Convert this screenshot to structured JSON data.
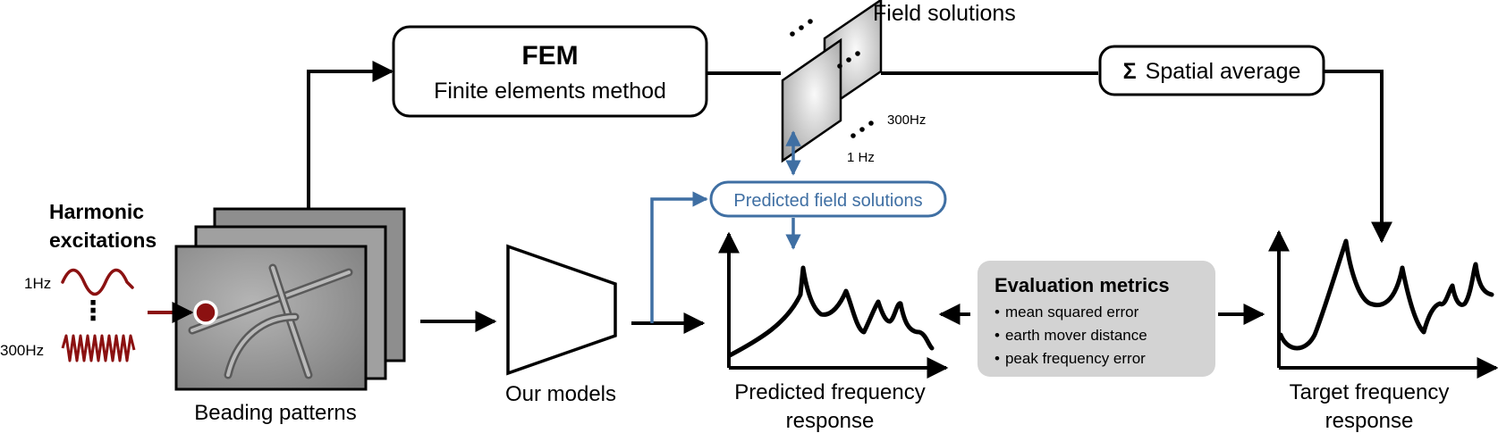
{
  "inputs": {
    "title_line1": "Harmonic",
    "title_line2": "excitations",
    "low_freq": "1Hz",
    "high_freq": "300Hz",
    "dots": "⋮",
    "wave_color": "#8b1111"
  },
  "beading": {
    "label": "Beading patterns"
  },
  "fem": {
    "title": "FEM",
    "subtitle": "Finite elements method"
  },
  "field_solutions": {
    "label": "Field solutions",
    "low": "1 Hz",
    "high": "300Hz"
  },
  "spatial_average": {
    "symbol": "Σ",
    "label": "Spatial average"
  },
  "predicted_field": {
    "label": "Predicted field solutions",
    "color": "#3f6fa3"
  },
  "models": {
    "label": "Our models"
  },
  "predicted_response": {
    "line1": "Predicted frequency",
    "line2": "response"
  },
  "target_response": {
    "line1": "Target frequency",
    "line2": "response"
  },
  "metrics": {
    "title": "Evaluation metrics",
    "items": [
      "mean squared error",
      "earth mover distance",
      "peak frequency error"
    ],
    "bullet": "•",
    "box_color": "#d3d3d3"
  }
}
